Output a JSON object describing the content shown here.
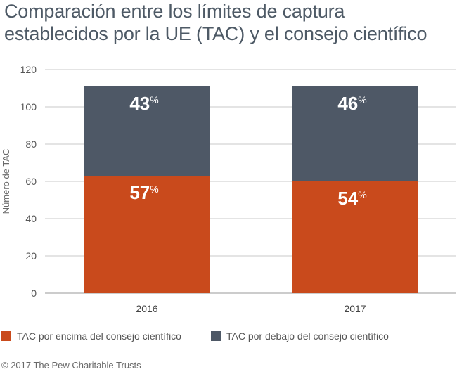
{
  "title_line1": "Comparación entre los límites de captura",
  "title_line2": "establecidos por la UE (TAC) y el consejo científico",
  "chart_data": {
    "type": "bar",
    "stacked": true,
    "categories": [
      "2016",
      "2017"
    ],
    "series": [
      {
        "name": "TAC por encima del consejo científico",
        "color": "#c94a1c",
        "values": [
          63,
          60
        ],
        "labels": [
          "57",
          "54"
        ]
      },
      {
        "name": "TAC por debajo del consejo científico",
        "color": "#4e5866",
        "values": [
          48,
          51
        ],
        "labels": [
          "43",
          "46"
        ]
      }
    ],
    "percent_symbol": "%",
    "ylabel": "Número de TAC",
    "ylim": [
      0,
      120
    ],
    "yticks": [
      0,
      20,
      40,
      60,
      80,
      100,
      120
    ],
    "grid": true
  },
  "footer": "© 2017 The Pew Charitable Trusts"
}
